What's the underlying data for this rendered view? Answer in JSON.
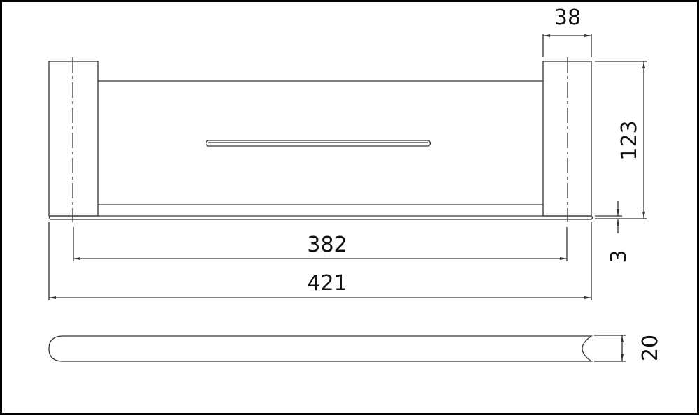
{
  "dimensions": {
    "post_width": "38",
    "height": "123",
    "base_thickness": "3",
    "center_distance": "382",
    "overall_length": "421",
    "depth": "20"
  },
  "colors": {
    "line": "#333333",
    "background": "#ffffff",
    "frame": "#000000"
  }
}
